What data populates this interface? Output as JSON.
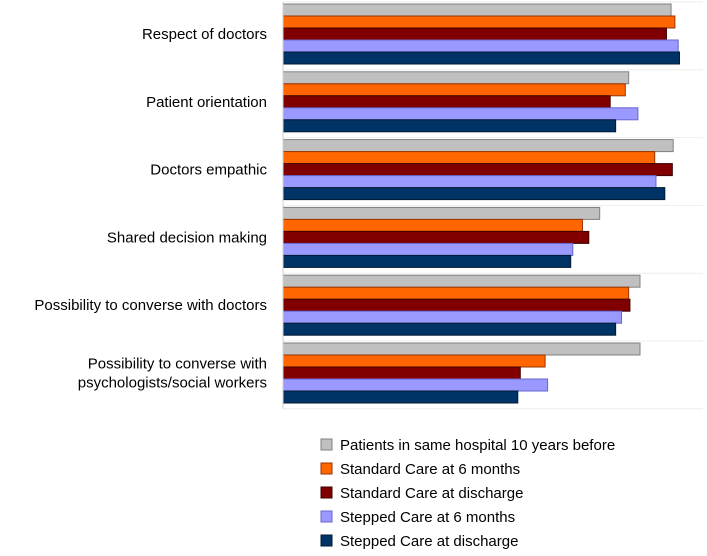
{
  "chart_data": {
    "type": "bar",
    "orientation": "horizontal",
    "grid": false,
    "legend_position": "bottom-right",
    "categories": [
      [
        "Respect of doctors"
      ],
      [
        "Patient orientation"
      ],
      [
        "Doctors empathic"
      ],
      [
        "Shared decision making"
      ],
      [
        "Possibility to converse with doctors"
      ],
      [
        "Possibility to converse with",
        "psychologists/social workers"
      ]
    ],
    "xlim": [
      0,
      100
    ],
    "series": [
      {
        "name": "Patients in same hospital 10 years before",
        "color": "#c0c0c0",
        "stroke": "#808080",
        "values": [
          92.4,
          82.3,
          92.9,
          75.4,
          85.0,
          85.0
        ]
      },
      {
        "name": "Standard Care at 6 months",
        "color": "#ff6600",
        "stroke": "#993300",
        "values": [
          93.3,
          81.5,
          88.5,
          71.3,
          82.3,
          62.4
        ]
      },
      {
        "name": "Standard Care at discharge",
        "color": "#800000",
        "stroke": "#400000",
        "values": [
          91.3,
          77.9,
          92.7,
          72.8,
          82.6,
          56.5
        ]
      },
      {
        "name": "Stepped Care at 6 months",
        "color": "#9999ff",
        "stroke": "#6666cc",
        "values": [
          94.1,
          84.5,
          88.8,
          69.0,
          80.6,
          63.0
        ]
      },
      {
        "name": "Stepped Care at discharge",
        "color": "#003366",
        "stroke": "#001a33",
        "values": [
          94.4,
          79.2,
          90.9,
          68.5,
          79.2,
          55.9
        ]
      }
    ]
  }
}
